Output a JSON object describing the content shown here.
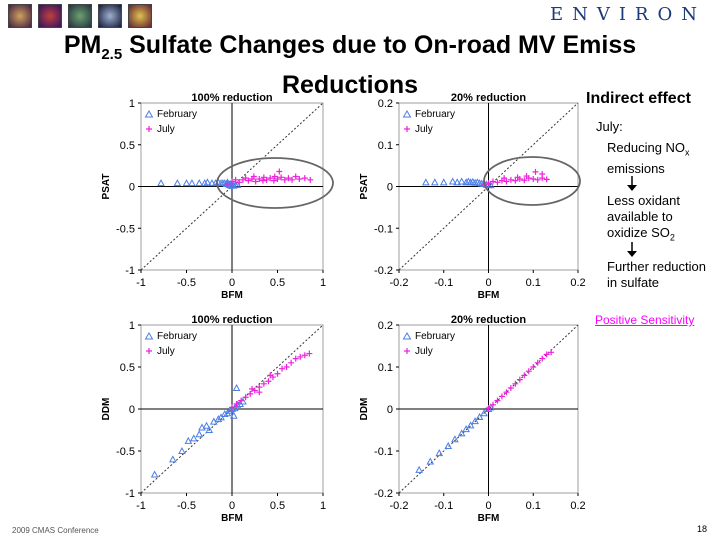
{
  "header": {
    "logo": "ENVIRON",
    "title_prefix": "PM",
    "title_sub": "2.5",
    "title_line1": " Sulfate Changes due to On-road MV Emiss",
    "title_line2": "Reductions",
    "thumbnails": [
      "thumbnail-1",
      "thumbnail-2",
      "thumbnail-3",
      "thumbnail-4",
      "thumbnail-5"
    ]
  },
  "sidebar": {
    "heading": "Indirect effect",
    "month": "July:",
    "step1_prefix": "Reducing NO",
    "step1_sub": "x",
    "step1_suffix": "emissions",
    "step2_line1": "Less oxidant",
    "step2_line2": "available to",
    "step2_prefix": "oxidize SO",
    "step2_sub": "2",
    "step3_line1": "Further reduction",
    "step3_line2": "in sulfate",
    "conclusion": "Positive Sensitivity"
  },
  "footer": {
    "conference": "2009 CMAS Conference",
    "page_number": "18"
  },
  "colors": {
    "february": "#4a7ee8",
    "july": "#ee22dd",
    "conclusion": "#ff00ff",
    "ellipse": "#666666"
  },
  "chart_data": [
    {
      "type": "scatter",
      "title": "100% reduction",
      "xlabel": "BFM",
      "ylabel": "PSAT",
      "xlim": [
        -1,
        1
      ],
      "ylim": [
        -1,
        1
      ],
      "xticks": [
        -1,
        -0.5,
        0,
        0.5,
        1
      ],
      "yticks": [
        -1,
        -0.5,
        0,
        0.5,
        1
      ],
      "xtick_labels": [
        "-1",
        "-0.5",
        "0",
        "0.5",
        "1"
      ],
      "ytick_labels": [
        "-1",
        "-0.5",
        "0",
        "0.5",
        "1"
      ],
      "legend": [
        "February",
        "July"
      ],
      "legend_position": "top-left",
      "one_to_one_line": true,
      "highlight_ellipse": true,
      "series": [
        {
          "name": "February",
          "points": [
            [
              -0.78,
              0.04
            ],
            [
              -0.6,
              0.04
            ],
            [
              -0.5,
              0.04
            ],
            [
              -0.44,
              0.04
            ],
            [
              -0.36,
              0.04
            ],
            [
              -0.3,
              0.04
            ],
            [
              -0.27,
              0.05
            ],
            [
              -0.22,
              0.04
            ],
            [
              -0.18,
              0.04
            ],
            [
              -0.15,
              0.05
            ],
            [
              -0.12,
              0.04
            ],
            [
              -0.1,
              0.04
            ],
            [
              -0.08,
              0.04
            ],
            [
              -0.06,
              0.03
            ],
            [
              -0.05,
              0.05
            ],
            [
              -0.04,
              0.03
            ],
            [
              -0.03,
              0.02
            ],
            [
              -0.02,
              0.03
            ],
            [
              -0.01,
              0.01
            ],
            [
              0.0,
              0.02
            ],
            [
              0.02,
              0.01
            ],
            [
              0.04,
              0.02
            ],
            [
              0.06,
              0.02
            ]
          ]
        },
        {
          "name": "July",
          "points": [
            [
              -0.05,
              0.03
            ],
            [
              0.0,
              0.06
            ],
            [
              0.04,
              0.08
            ],
            [
              0.08,
              0.05
            ],
            [
              0.12,
              0.08
            ],
            [
              0.15,
              0.1
            ],
            [
              0.18,
              0.07
            ],
            [
              0.22,
              0.09
            ],
            [
              0.26,
              0.06
            ],
            [
              0.3,
              0.09
            ],
            [
              0.34,
              0.07
            ],
            [
              0.38,
              0.08
            ],
            [
              0.42,
              0.1
            ],
            [
              0.46,
              0.07
            ],
            [
              0.5,
              0.09
            ],
            [
              0.54,
              0.11
            ],
            [
              0.58,
              0.08
            ],
            [
              0.62,
              0.1
            ],
            [
              0.66,
              0.08
            ],
            [
              0.7,
              0.12
            ],
            [
              0.74,
              0.09
            ],
            [
              0.8,
              0.1
            ],
            [
              0.86,
              0.08
            ],
            [
              0.52,
              0.18
            ],
            [
              0.47,
              0.12
            ],
            [
              0.35,
              0.11
            ],
            [
              0.24,
              0.12
            ]
          ]
        }
      ]
    },
    {
      "type": "scatter",
      "title": "20% reduction",
      "xlabel": "BFM",
      "ylabel": "PSAT",
      "xlim": [
        -0.2,
        0.2
      ],
      "ylim": [
        -0.2,
        0.2
      ],
      "xticks": [
        -0.2,
        -0.1,
        0,
        0.1,
        0.2
      ],
      "yticks": [
        -0.2,
        -0.1,
        0,
        0.1,
        0.2
      ],
      "xtick_labels": [
        "-0.2",
        "-0.1",
        "0",
        "0.1",
        "0.2"
      ],
      "ytick_labels": [
        "-0.2",
        "-0.1",
        "0",
        "0.1",
        "0.2"
      ],
      "legend": [
        "February",
        "July"
      ],
      "legend_position": "top-left",
      "one_to_one_line": true,
      "highlight_ellipse": true,
      "series": [
        {
          "name": "February",
          "points": [
            [
              -0.14,
              0.01
            ],
            [
              -0.12,
              0.01
            ],
            [
              -0.1,
              0.01
            ],
            [
              -0.08,
              0.012
            ],
            [
              -0.07,
              0.01
            ],
            [
              -0.06,
              0.012
            ],
            [
              -0.05,
              0.01
            ],
            [
              -0.045,
              0.012
            ],
            [
              -0.04,
              0.01
            ],
            [
              -0.035,
              0.011
            ],
            [
              -0.03,
              0.009
            ],
            [
              -0.025,
              0.01
            ],
            [
              -0.02,
              0.008
            ],
            [
              -0.015,
              0.007
            ],
            [
              -0.01,
              0.006
            ],
            [
              -0.005,
              0.005
            ],
            [
              0.0,
              0.004
            ],
            [
              0.005,
              0.003
            ]
          ]
        },
        {
          "name": "July",
          "points": [
            [
              -0.01,
              0.004
            ],
            [
              0.0,
              0.008
            ],
            [
              0.01,
              0.012
            ],
            [
              0.02,
              0.01
            ],
            [
              0.03,
              0.014
            ],
            [
              0.04,
              0.012
            ],
            [
              0.05,
              0.016
            ],
            [
              0.06,
              0.014
            ],
            [
              0.07,
              0.018
            ],
            [
              0.08,
              0.015
            ],
            [
              0.09,
              0.02
            ],
            [
              0.1,
              0.018
            ],
            [
              0.11,
              0.016
            ],
            [
              0.12,
              0.02
            ],
            [
              0.13,
              0.017
            ],
            [
              0.105,
              0.035
            ],
            [
              0.12,
              0.03
            ],
            [
              0.085,
              0.025
            ],
            [
              0.065,
              0.022
            ],
            [
              0.035,
              0.02
            ]
          ]
        }
      ]
    },
    {
      "type": "scatter",
      "title": "100% reduction",
      "xlabel": "BFM",
      "ylabel": "DDM",
      "xlim": [
        -1,
        1
      ],
      "ylim": [
        -1,
        1
      ],
      "xticks": [
        -1,
        -0.5,
        0,
        0.5,
        1
      ],
      "yticks": [
        -1,
        -0.5,
        0,
        0.5,
        1
      ],
      "xtick_labels": [
        "-1",
        "-0.5",
        "0",
        "0.5",
        "1"
      ],
      "ytick_labels": [
        "-1",
        "-0.5",
        "0",
        "0.5",
        "1"
      ],
      "legend": [
        "February",
        "July"
      ],
      "legend_position": "top-left",
      "one_to_one_line": true,
      "highlight_ellipse": false,
      "series": [
        {
          "name": "February",
          "points": [
            [
              -0.85,
              -0.78
            ],
            [
              -0.65,
              -0.6
            ],
            [
              -0.55,
              -0.5
            ],
            [
              -0.48,
              -0.38
            ],
            [
              -0.42,
              -0.35
            ],
            [
              -0.36,
              -0.3
            ],
            [
              -0.33,
              -0.22
            ],
            [
              -0.28,
              -0.2
            ],
            [
              -0.25,
              -0.25
            ],
            [
              -0.2,
              -0.15
            ],
            [
              -0.15,
              -0.12
            ],
            [
              -0.12,
              -0.1
            ],
            [
              -0.08,
              -0.06
            ],
            [
              -0.05,
              -0.05
            ],
            [
              -0.02,
              -0.02
            ],
            [
              0.0,
              0.0
            ],
            [
              0.03,
              0.01
            ],
            [
              0.06,
              0.05
            ],
            [
              0.09,
              0.06
            ],
            [
              0.12,
              0.09
            ],
            [
              0.05,
              0.25
            ],
            [
              0.02,
              -0.08
            ]
          ]
        },
        {
          "name": "July",
          "points": [
            [
              0.0,
              0.02
            ],
            [
              0.05,
              0.06
            ],
            [
              0.1,
              0.1
            ],
            [
              0.15,
              0.14
            ],
            [
              0.2,
              0.18
            ],
            [
              0.25,
              0.22
            ],
            [
              0.3,
              0.26
            ],
            [
              0.35,
              0.3
            ],
            [
              0.4,
              0.33
            ],
            [
              0.45,
              0.38
            ],
            [
              0.5,
              0.42
            ],
            [
              0.55,
              0.48
            ],
            [
              0.6,
              0.5
            ],
            [
              0.65,
              0.55
            ],
            [
              0.7,
              0.6
            ],
            [
              0.75,
              0.62
            ],
            [
              0.8,
              0.64
            ],
            [
              0.85,
              0.66
            ],
            [
              0.3,
              0.2
            ],
            [
              0.22,
              0.24
            ],
            [
              0.42,
              0.4
            ]
          ]
        }
      ]
    },
    {
      "type": "scatter",
      "title": "20% reduction",
      "xlabel": "BFM",
      "ylabel": "DDM",
      "xlim": [
        -0.2,
        0.2
      ],
      "ylim": [
        -0.2,
        0.2
      ],
      "xticks": [
        -0.2,
        -0.1,
        0,
        0.1,
        0.2
      ],
      "yticks": [
        -0.2,
        -0.1,
        0,
        0.1,
        0.2
      ],
      "xtick_labels": [
        "-0.2",
        "-0.1",
        "0",
        "0.1",
        "0.2"
      ],
      "ytick_labels": [
        "-0.2",
        "-0.1",
        "0",
        "0.1",
        "0.2"
      ],
      "legend": [
        "February",
        "July"
      ],
      "legend_position": "top-left",
      "one_to_one_line": true,
      "highlight_ellipse": false,
      "series": [
        {
          "name": "February",
          "points": [
            [
              -0.155,
              -0.145
            ],
            [
              -0.13,
              -0.125
            ],
            [
              -0.11,
              -0.105
            ],
            [
              -0.09,
              -0.088
            ],
            [
              -0.075,
              -0.072
            ],
            [
              -0.06,
              -0.058
            ],
            [
              -0.05,
              -0.048
            ],
            [
              -0.04,
              -0.039
            ],
            [
              -0.03,
              -0.029
            ],
            [
              -0.02,
              -0.019
            ],
            [
              -0.01,
              -0.01
            ],
            [
              0.0,
              0.0
            ],
            [
              0.005,
              0.004
            ]
          ]
        },
        {
          "name": "July",
          "points": [
            [
              0.0,
              0.002
            ],
            [
              0.01,
              0.01
            ],
            [
              0.02,
              0.02
            ],
            [
              0.03,
              0.03
            ],
            [
              0.04,
              0.04
            ],
            [
              0.05,
              0.05
            ],
            [
              0.06,
              0.06
            ],
            [
              0.07,
              0.07
            ],
            [
              0.08,
              0.08
            ],
            [
              0.09,
              0.09
            ],
            [
              0.1,
              0.1
            ],
            [
              0.11,
              0.11
            ],
            [
              0.12,
              0.12
            ],
            [
              0.13,
              0.13
            ],
            [
              0.14,
              0.135
            ]
          ]
        }
      ]
    }
  ]
}
